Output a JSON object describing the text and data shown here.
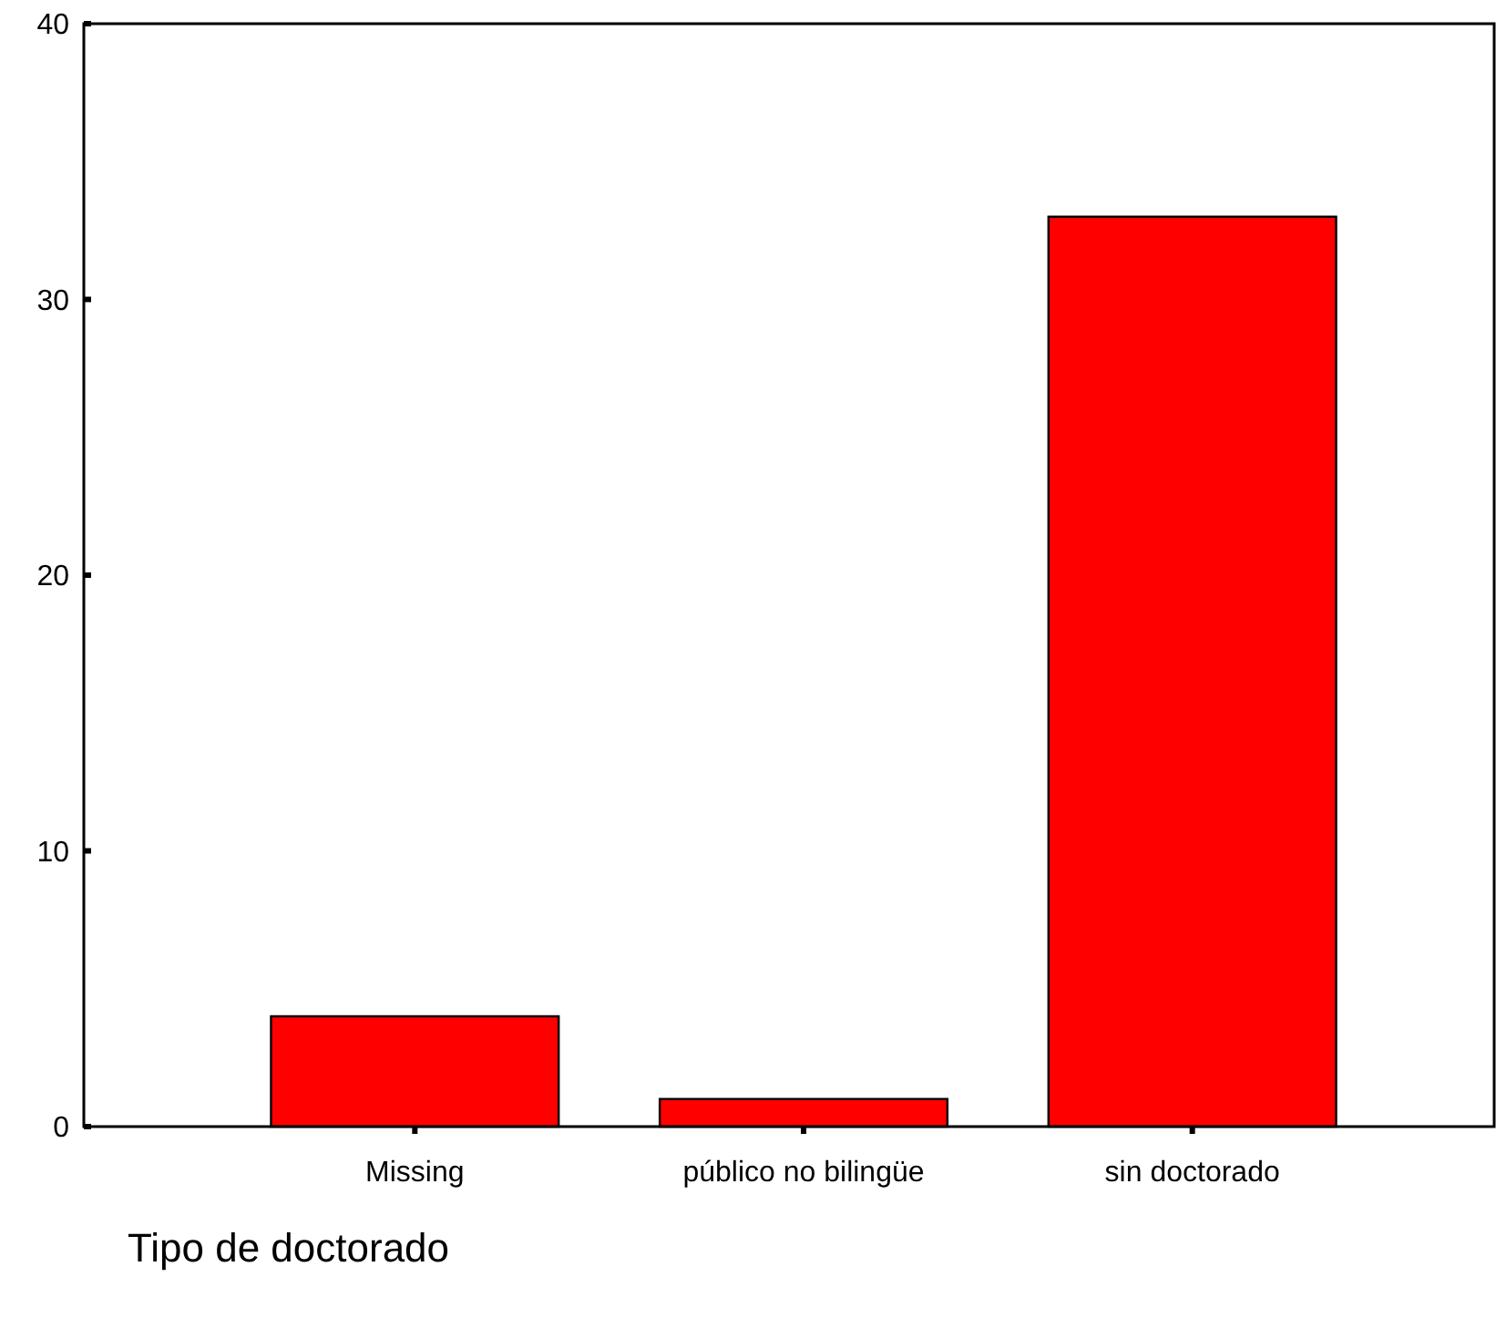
{
  "chart_data": {
    "type": "bar",
    "xlabel": "Tipo de doctorado",
    "categories": [
      "Missing",
      "público no bilingüe",
      "sin doctorado"
    ],
    "values": [
      4,
      1,
      33
    ],
    "color": "#ff0000",
    "ylim": [
      0,
      40
    ],
    "yticks": [
      0,
      10,
      20,
      30,
      40
    ],
    "grid": false
  }
}
